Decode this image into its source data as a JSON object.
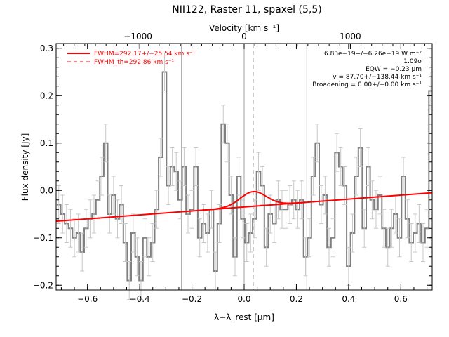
{
  "chart_data": {
    "type": "line",
    "title": "NII122, Raster 11, spaxel (5,5)",
    "xlabel": "λ−λ_rest [μm]",
    "ylabel": "Flux density [Jy]",
    "top_axis_label": "Velocity [km s⁻¹]",
    "xlim": [
      -0.72,
      0.72
    ],
    "ylim": [
      -0.21,
      0.31
    ],
    "top_xlim_kms": [
      -1770,
      1770
    ],
    "x_ticks": [
      -0.6,
      -0.4,
      -0.2,
      0.0,
      0.2,
      0.4,
      0.6
    ],
    "x_tick_labels": [
      "−0.6",
      "−0.4",
      "−0.2",
      "0.0",
      "0.2",
      "0.4",
      "0.6"
    ],
    "y_ticks": [
      -0.2,
      -0.1,
      0.0,
      0.1,
      0.2,
      0.3
    ],
    "y_tick_labels": [
      "−0.2",
      "−0.1",
      "0.0",
      "0.1",
      "0.2",
      "0.3"
    ],
    "top_ticks_kms": [
      -1000,
      0,
      1000
    ],
    "top_tick_labels": [
      "−1000",
      "0",
      "1000"
    ],
    "vertical_lines": [
      {
        "x": -0.24,
        "style": "solid"
      },
      {
        "x": 0.0,
        "style": "solid"
      },
      {
        "x": 0.035,
        "style": "dashed"
      },
      {
        "x": 0.24,
        "style": "solid"
      }
    ],
    "legend": {
      "placement": "top-left",
      "entries": [
        {
          "label": "FWHM=292.17+/−25.54 km s⁻¹",
          "style": "solid",
          "color": "#ff0000"
        },
        {
          "label": "FWHM_th=292.86 km s⁻¹",
          "style": "dashed",
          "color": "#ff0000"
        }
      ]
    },
    "annotations": [
      "6.83e−19+/−6.26e−19 W m⁻²",
      "1.09σ",
      "EQW = −0.23 μm",
      "v = 87.70+/−138.44 km s⁻¹",
      "Broadening = 0.00+/−0.00 km s⁻¹"
    ],
    "series": [
      {
        "kind": "data-histogram",
        "color": "#808080",
        "x": [
          -0.71,
          -0.695,
          -0.68,
          -0.665,
          -0.65,
          -0.635,
          -0.62,
          -0.605,
          -0.59,
          -0.575,
          -0.56,
          -0.545,
          -0.53,
          -0.515,
          -0.5,
          -0.485,
          -0.47,
          -0.455,
          -0.44,
          -0.425,
          -0.41,
          -0.395,
          -0.38,
          -0.365,
          -0.35,
          -0.335,
          -0.32,
          -0.305,
          -0.29,
          -0.275,
          -0.26,
          -0.245,
          -0.23,
          -0.215,
          -0.2,
          -0.185,
          -0.17,
          -0.155,
          -0.14,
          -0.125,
          -0.11,
          -0.095,
          -0.08,
          -0.065,
          -0.05,
          -0.035,
          -0.02,
          -0.005,
          0.01,
          0.025,
          0.04,
          0.055,
          0.07,
          0.085,
          0.1,
          0.115,
          0.13,
          0.145,
          0.16,
          0.175,
          0.19,
          0.205,
          0.22,
          0.235,
          0.25,
          0.265,
          0.28,
          0.295,
          0.31,
          0.325,
          0.34,
          0.355,
          0.37,
          0.385,
          0.4,
          0.415,
          0.43,
          0.445,
          0.46,
          0.475,
          0.49,
          0.505,
          0.52,
          0.535,
          0.55,
          0.565,
          0.58,
          0.595,
          0.61,
          0.625,
          0.64,
          0.655,
          0.67,
          0.685,
          0.7,
          0.715
        ],
        "y": [
          -0.03,
          -0.05,
          -0.07,
          -0.08,
          -0.1,
          -0.09,
          -0.13,
          -0.08,
          -0.06,
          -0.05,
          -0.02,
          0.03,
          0.1,
          -0.05,
          -0.01,
          -0.06,
          -0.03,
          -0.11,
          -0.19,
          -0.09,
          -0.14,
          -0.19,
          -0.1,
          -0.14,
          -0.11,
          -0.04,
          0.07,
          0.25,
          0.01,
          0.05,
          0.04,
          -0.02,
          0.05,
          -0.05,
          -0.04,
          0.05,
          -0.1,
          -0.07,
          -0.09,
          -0.04,
          -0.17,
          -0.07,
          0.14,
          0.1,
          -0.01,
          -0.14,
          0.03,
          -0.06,
          -0.11,
          -0.09,
          -0.06,
          0.04,
          0.01,
          -0.12,
          -0.05,
          -0.07,
          -0.02,
          -0.04,
          -0.04,
          -0.03,
          -0.02,
          -0.04,
          -0.02,
          -0.14,
          -0.1,
          0.03,
          0.1,
          -0.03,
          -0.01,
          -0.12,
          -0.1,
          0.08,
          0.05,
          0.01,
          -0.16,
          -0.09,
          0.03,
          0.09,
          -0.08,
          0.05,
          -0.02,
          -0.04,
          -0.01,
          -0.08,
          -0.12,
          -0.08,
          -0.05,
          -0.1,
          0.03,
          -0.06,
          -0.11,
          -0.09,
          -0.07,
          -0.11,
          -0.08,
          0.21
        ]
      },
      {
        "kind": "model-baseline",
        "color": "#ff0000",
        "x": [
          -0.72,
          0.72
        ],
        "y": [
          -0.065,
          -0.005
        ]
      },
      {
        "kind": "model-gaussian",
        "color": "#ff0000",
        "center": 0.035,
        "amplitude": 0.031,
        "sigma": 0.05
      }
    ]
  }
}
